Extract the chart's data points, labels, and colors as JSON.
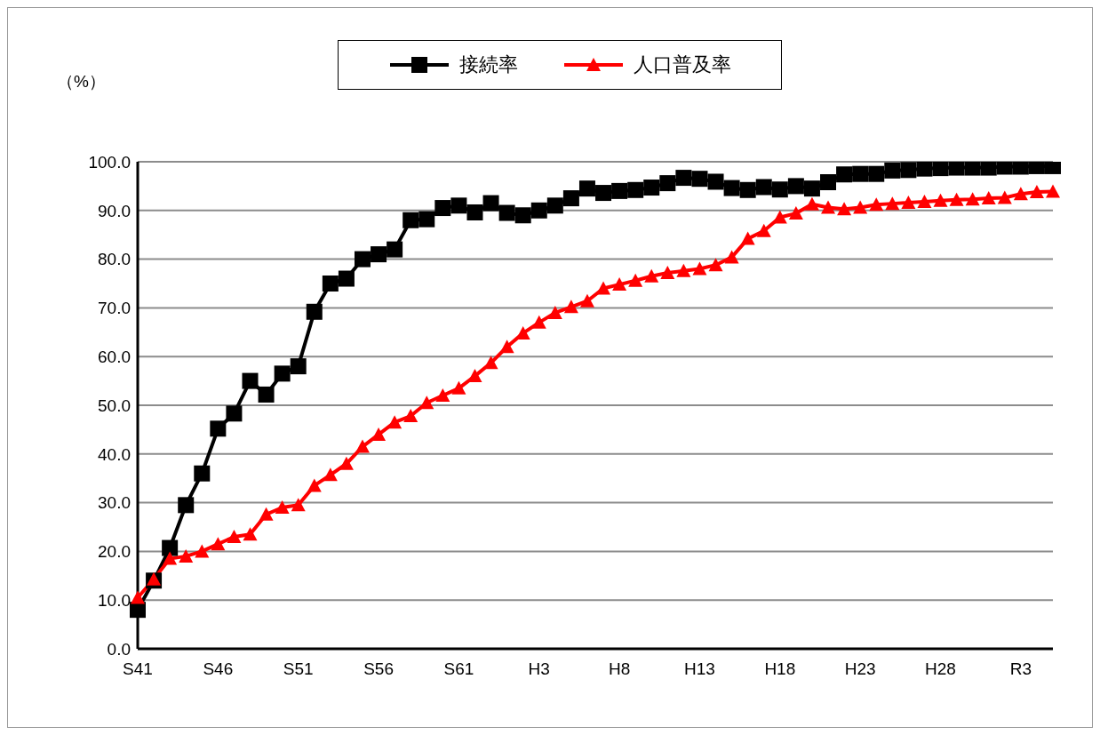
{
  "chart_data": {
    "type": "line",
    "ylabel": "（%）",
    "categories": [
      "S41",
      null,
      null,
      null,
      null,
      "S46",
      null,
      null,
      null,
      null,
      "S51",
      null,
      null,
      null,
      null,
      "S56",
      null,
      null,
      null,
      null,
      "S61",
      null,
      null,
      null,
      null,
      "H3",
      null,
      null,
      null,
      null,
      "H8",
      null,
      null,
      null,
      null,
      "H13",
      null,
      null,
      null,
      null,
      "H18",
      null,
      null,
      null,
      null,
      "H23",
      null,
      null,
      null,
      null,
      "H28",
      null,
      null,
      null,
      null,
      "R3",
      null,
      null
    ],
    "series": [
      {
        "name": "接続率",
        "color": "#000000",
        "marker": "square",
        "values": [
          8.0,
          14.0,
          20.7,
          29.5,
          36.0,
          45.2,
          48.3,
          55.0,
          52.2,
          56.5,
          58.0,
          69.2,
          75.0,
          76.0,
          80.0,
          81.0,
          82.0,
          88.0,
          88.2,
          90.5,
          91.0,
          89.6,
          91.5,
          89.5,
          89.0,
          90.0,
          91.0,
          92.5,
          94.5,
          93.6,
          94.0,
          94.2,
          94.7,
          95.6,
          96.7,
          96.5,
          95.9,
          94.6,
          94.2,
          94.8,
          94.3,
          95.0,
          94.5,
          95.8,
          97.4,
          97.5,
          97.5,
          98.2,
          98.3,
          98.6,
          98.7,
          98.8,
          98.8,
          98.8,
          99.0,
          99.0,
          99.1,
          99.1
        ]
      },
      {
        "name": "人口普及率",
        "color": "#ff0000",
        "marker": "triangle",
        "values": [
          10.5,
          14.3,
          18.5,
          19.0,
          20.0,
          21.5,
          23.0,
          23.5,
          27.6,
          29.0,
          29.5,
          33.5,
          35.7,
          38.0,
          41.5,
          44.0,
          46.5,
          47.8,
          50.5,
          52.0,
          53.5,
          56.0,
          58.7,
          62.0,
          64.8,
          67.0,
          69.0,
          70.2,
          71.4,
          74.0,
          74.8,
          75.6,
          76.5,
          77.2,
          77.6,
          78.0,
          78.8,
          80.4,
          84.2,
          85.8,
          88.6,
          89.4,
          91.3,
          90.6,
          90.3,
          90.6,
          91.2,
          91.4,
          91.6,
          91.8,
          92.0,
          92.2,
          92.3,
          92.5,
          92.6,
          93.4,
          93.8,
          93.9
        ]
      }
    ],
    "ylim": [
      0,
      100
    ],
    "yticks": [
      {
        "value": 0,
        "label": "0.0"
      },
      {
        "value": 10,
        "label": "10.0"
      },
      {
        "value": 20,
        "label": "20.0"
      },
      {
        "value": 30,
        "label": "30.0"
      },
      {
        "value": 40,
        "label": "40.0"
      },
      {
        "value": 50,
        "label": "50.0"
      },
      {
        "value": 60,
        "label": "60.0"
      },
      {
        "value": 70,
        "label": "70.0"
      },
      {
        "value": 80,
        "label": "80.0"
      },
      {
        "value": 90,
        "label": "90.0"
      },
      {
        "value": 100,
        "label": "100.0"
      }
    ],
    "grid": "y",
    "legend": "top",
    "line_style": "solid"
  }
}
